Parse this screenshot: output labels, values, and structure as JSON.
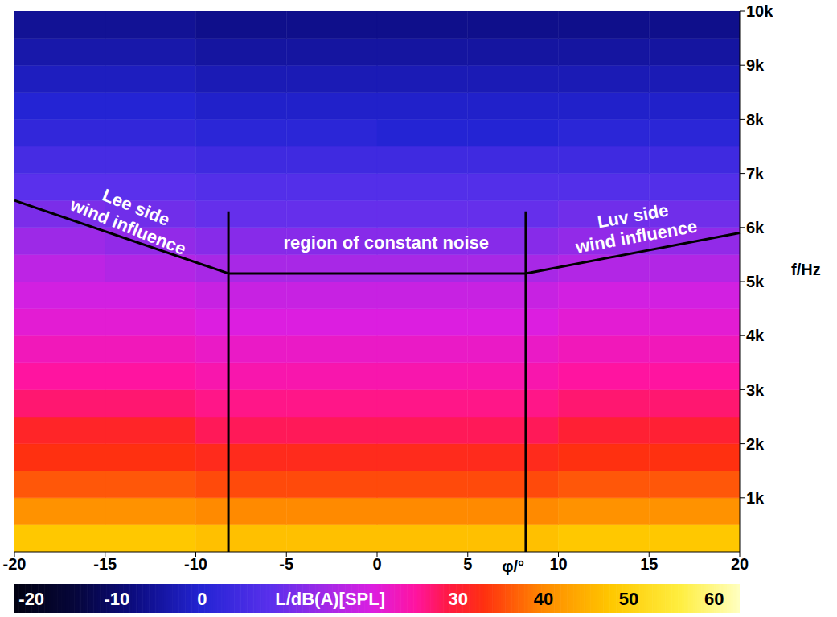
{
  "chart_data": {
    "type": "heatmap",
    "xlim": [
      -20,
      20
    ],
    "xticks": [
      -20,
      -15,
      -10,
      -5,
      0,
      5,
      10,
      15,
      20
    ],
    "x_label": "φ/°",
    "ylim": [
      0,
      10000
    ],
    "yticks": [
      {
        "value": 1000,
        "label": "1k"
      },
      {
        "value": 2000,
        "label": "2k"
      },
      {
        "value": 3000,
        "label": "3k"
      },
      {
        "value": 4000,
        "label": "4k"
      },
      {
        "value": 5000,
        "label": "5k"
      },
      {
        "value": 6000,
        "label": "6k"
      },
      {
        "value": 7000,
        "label": "7k"
      },
      {
        "value": 8000,
        "label": "8k"
      },
      {
        "value": 9000,
        "label": "9k"
      },
      {
        "value": 10000,
        "label": "10k"
      }
    ],
    "y_label": "f/Hz",
    "cells": {
      "x_edges": [
        -20,
        -15,
        -10,
        -5,
        0,
        5,
        10,
        15,
        20
      ],
      "y_edges": [
        0,
        500,
        1000,
        1500,
        2000,
        2500,
        3000,
        3500,
        4000,
        4500,
        5000,
        5500,
        6000,
        6500,
        7000,
        7500,
        8000,
        8500,
        9000,
        9500,
        10000
      ],
      "values": [
        [
          48,
          48,
          47,
          47,
          47,
          47,
          48,
          48
        ],
        [
          41,
          41,
          40,
          40,
          40,
          40,
          41,
          41
        ],
        [
          36,
          36,
          35,
          35,
          35,
          35,
          36,
          36
        ],
        [
          33,
          33,
          32,
          32,
          32,
          32,
          33,
          33
        ],
        [
          31,
          31,
          28,
          28,
          28,
          28,
          30,
          30
        ],
        [
          27,
          27,
          26,
          26,
          26,
          26,
          27,
          27
        ],
        [
          25,
          25,
          24,
          24,
          24,
          24,
          25,
          25
        ],
        [
          23,
          23,
          22,
          22,
          22,
          22,
          23,
          23
        ],
        [
          21,
          21,
          20,
          20,
          20,
          20,
          21,
          21
        ],
        [
          19,
          19,
          18,
          18,
          18,
          18,
          19,
          19
        ],
        [
          17,
          16,
          15,
          15,
          15,
          15,
          16,
          16
        ],
        [
          14,
          13,
          12,
          12,
          12,
          12,
          13,
          13
        ],
        [
          11,
          10,
          9,
          9,
          9,
          9,
          10,
          10
        ],
        [
          8,
          8,
          7,
          7,
          7,
          7,
          7,
          7
        ],
        [
          5,
          5,
          4,
          4,
          4,
          4,
          4,
          4
        ],
        [
          2,
          2,
          1,
          1,
          0,
          0,
          1,
          1
        ],
        [
          0,
          0,
          -1,
          -1,
          -1,
          -1,
          -1,
          -1
        ],
        [
          -2,
          -2,
          -3,
          -3,
          -3,
          -3,
          -3,
          -3
        ],
        [
          -4,
          -4,
          -5,
          -5,
          -5,
          -5,
          -5,
          -5
        ],
        [
          -6,
          -6,
          -7,
          -7,
          -7,
          -7,
          -7,
          -7
        ]
      ]
    },
    "colorbar": {
      "label": "L/dB(A)[SPL]",
      "range": [
        -22,
        63
      ],
      "ticks": [
        -20,
        -10,
        0,
        30,
        40,
        50,
        60
      ]
    },
    "annotations": [
      {
        "type": "text",
        "text": [
          "Lee side",
          "wind influence"
        ],
        "x": -13.5,
        "y": 6200
      },
      {
        "type": "text",
        "text": [
          "region of constant noise"
        ],
        "x": 0.5,
        "y": 5730
      },
      {
        "type": "text",
        "text": [
          "Luv side",
          "wind influence"
        ],
        "x": 14.2,
        "y": 6030
      },
      {
        "type": "line",
        "points": [
          [
            -20,
            6500
          ],
          [
            -8.2,
            5150
          ],
          [
            8.2,
            5150
          ],
          [
            20,
            5900
          ]
        ]
      },
      {
        "type": "line",
        "points": [
          [
            -8.2,
            0
          ],
          [
            -8.2,
            6300
          ]
        ]
      },
      {
        "type": "line",
        "points": [
          [
            8.2,
            0
          ],
          [
            8.2,
            6300
          ]
        ]
      }
    ]
  }
}
